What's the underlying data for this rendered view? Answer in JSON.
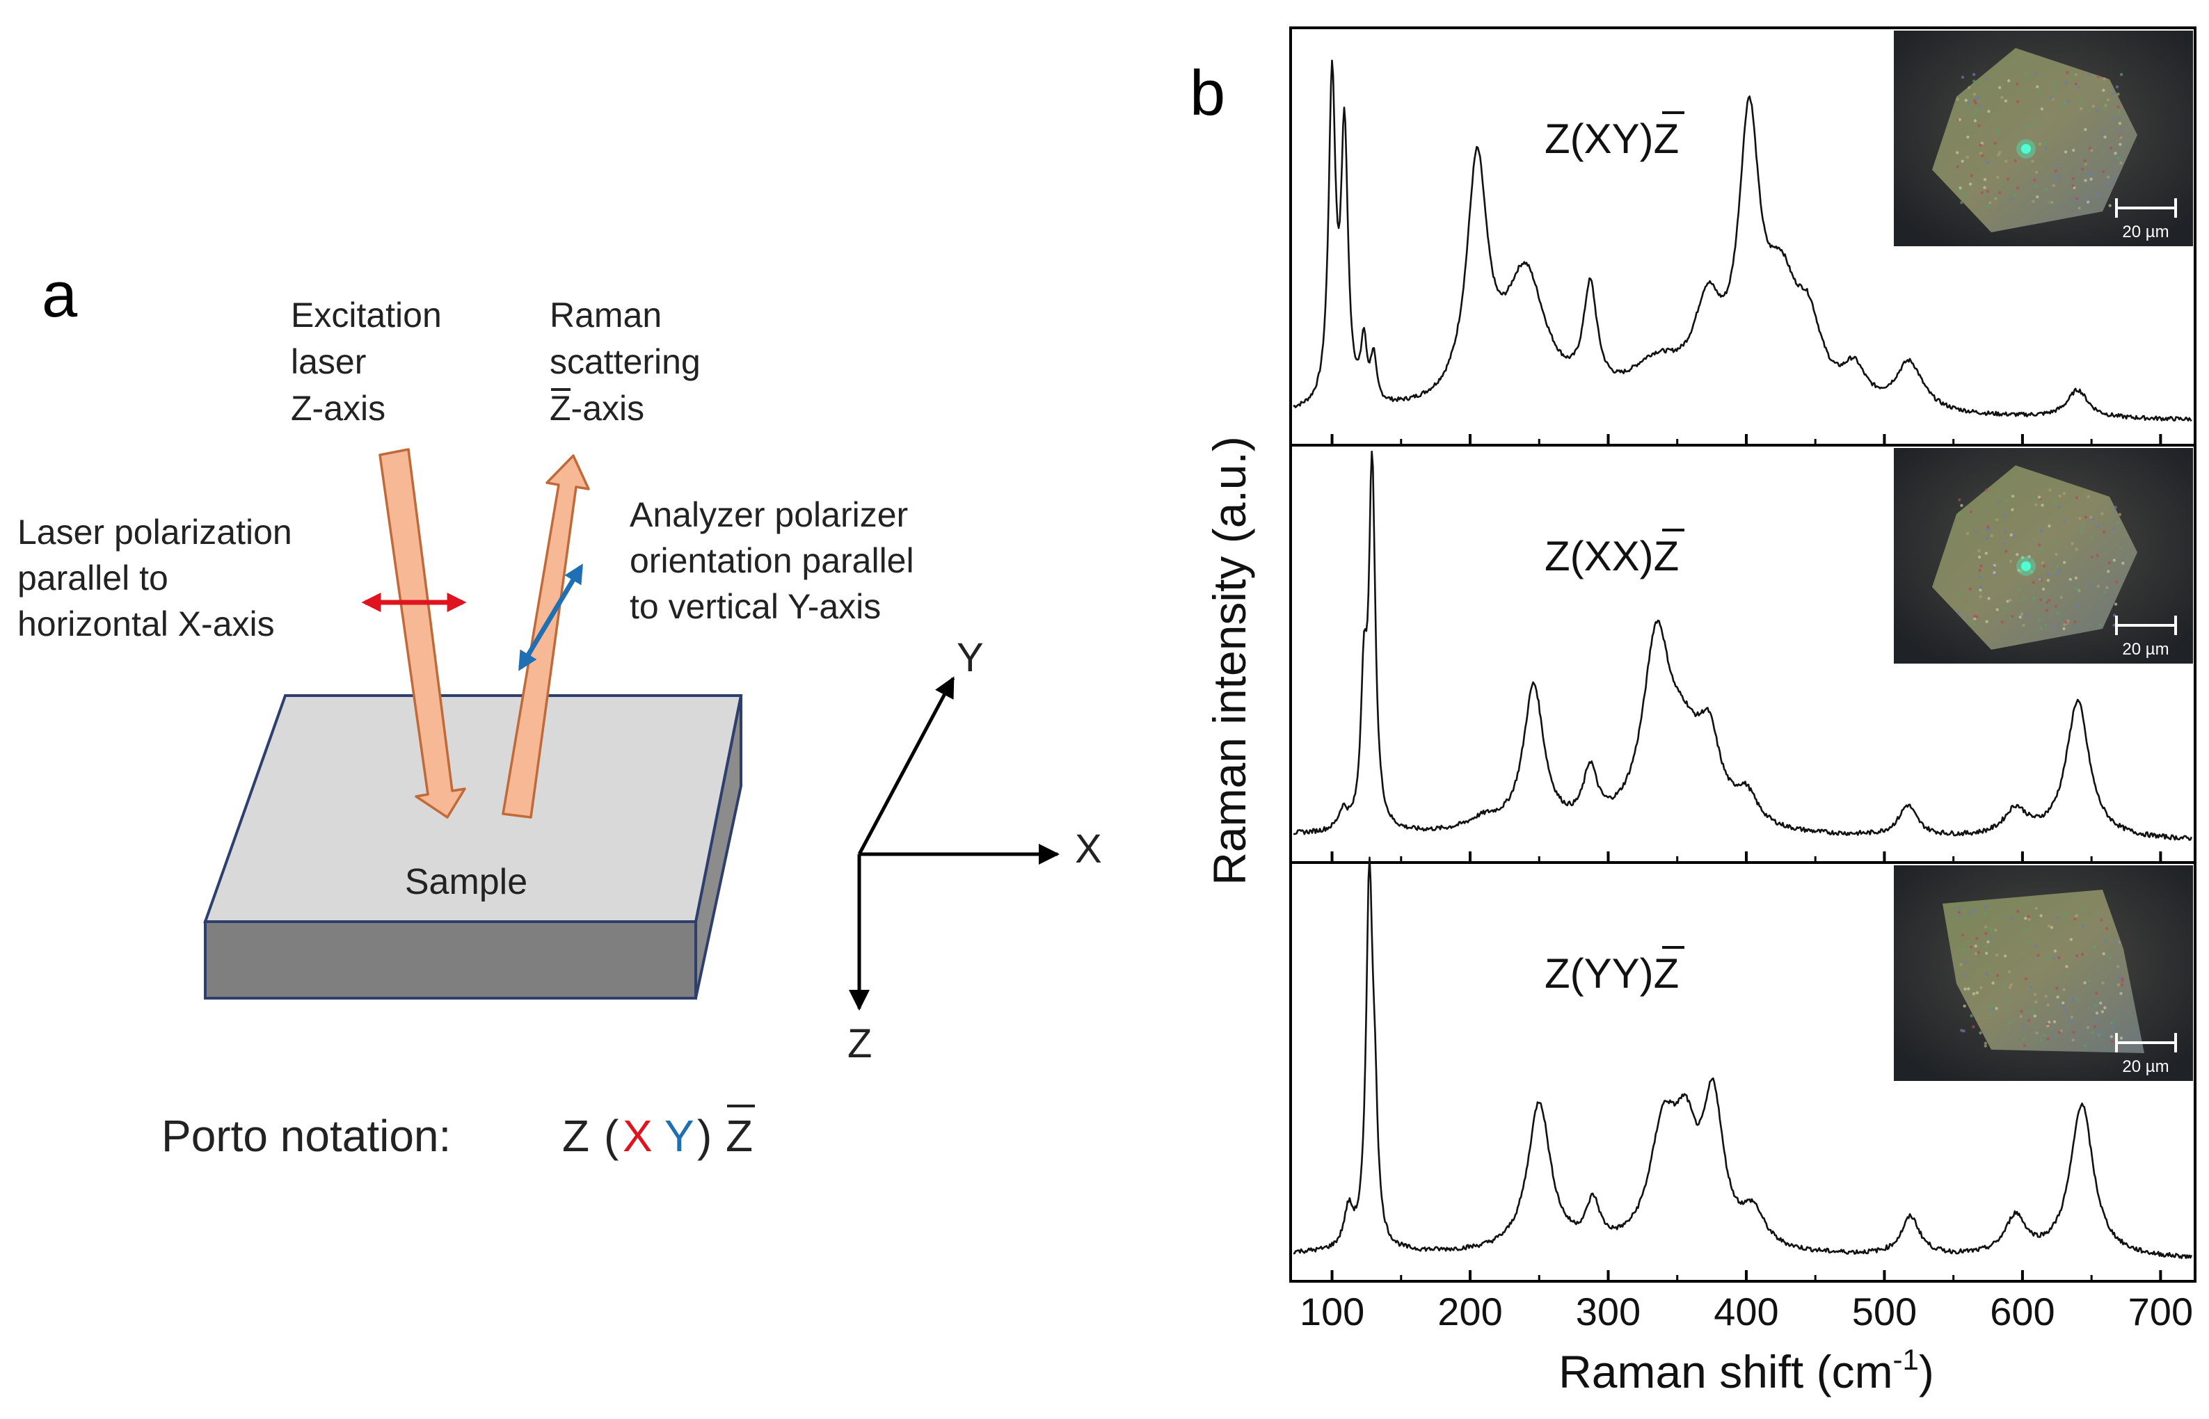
{
  "panel_a": {
    "letter": "a",
    "excitation": [
      "Excitation",
      "laser",
      "Z-axis"
    ],
    "raman": [
      "Raman",
      "scattering",
      "Z-axis"
    ],
    "laser_pol": [
      "Laser polarization",
      "parallel to",
      "horizontal X-axis"
    ],
    "analyzer": [
      "Analyzer polarizer",
      "orientation parallel",
      "to vertical Y-axis"
    ],
    "sample": "Sample",
    "axes": {
      "x": "X",
      "y": "Y",
      "z": "Z"
    },
    "porto": {
      "prefix": "Porto notation:",
      "z1": "Z",
      "open": "(",
      "x": "X",
      "y": "Y",
      "close": ")",
      "z2": "Z"
    },
    "colors": {
      "x": "#e0141e",
      "y": "#1f6fb3",
      "beam": "#f7b896",
      "beam_edge": "#c06a3a",
      "sample_top": "#d9d9d9",
      "sample_side": "#7f7f7f"
    }
  },
  "panel_b": {
    "letter": "b",
    "chart_data": {
      "type": "line",
      "xlabel": "Raman shift (cm",
      "xlabel_sup": "-1",
      "xlabel_close": ")",
      "ylabel": "Raman intensity (a.u.)",
      "xlim": [
        70,
        725
      ],
      "xticks": [
        100,
        200,
        300,
        400,
        500,
        600,
        700
      ],
      "xtick_labels": [
        "100",
        "200",
        "300",
        "400",
        "500",
        "600",
        "700"
      ],
      "series": [
        {
          "name": "Z(XY)Z",
          "label_main": "Z(XY)",
          "label_bar": "Z",
          "inset_scale": "20 µm",
          "inset_spot": true,
          "baseline": 0.03,
          "ymax": 1.12,
          "peaks": [
            {
              "c": 100,
              "a": 0.93,
              "w": 3
            },
            {
              "c": 109,
              "a": 0.77,
              "w": 3
            },
            {
              "c": 123,
              "a": 0.17,
              "w": 2.5
            },
            {
              "c": 130,
              "a": 0.13,
              "w": 2.5
            },
            {
              "c": 205,
              "a": 0.68,
              "w": 9
            },
            {
              "c": 240,
              "a": 0.38,
              "w": 18
            },
            {
              "c": 287,
              "a": 0.3,
              "w": 6
            },
            {
              "c": 335,
              "a": 0.12,
              "w": 25
            },
            {
              "c": 372,
              "a": 0.25,
              "w": 12
            },
            {
              "c": 402,
              "a": 0.77,
              "w": 9
            },
            {
              "c": 425,
              "a": 0.3,
              "w": 14
            },
            {
              "c": 445,
              "a": 0.2,
              "w": 12
            },
            {
              "c": 478,
              "a": 0.1,
              "w": 10
            },
            {
              "c": 518,
              "a": 0.14,
              "w": 12
            },
            {
              "c": 640,
              "a": 0.08,
              "w": 9
            }
          ]
        },
        {
          "name": "Z(XX)Z",
          "label_main": "Z(XX)",
          "label_bar": "Z",
          "inset_scale": "20 µm",
          "inset_spot": true,
          "baseline": 0.02,
          "ymax": 1.02,
          "peaks": [
            {
              "c": 108,
              "a": 0.05,
              "w": 4
            },
            {
              "c": 123,
              "a": 0.35,
              "w": 2.5
            },
            {
              "c": 129,
              "a": 0.95,
              "w": 2.8
            },
            {
              "c": 210,
              "a": 0.03,
              "w": 15
            },
            {
              "c": 246,
              "a": 0.38,
              "w": 9
            },
            {
              "c": 287,
              "a": 0.14,
              "w": 6
            },
            {
              "c": 335,
              "a": 0.48,
              "w": 12
            },
            {
              "c": 355,
              "a": 0.18,
              "w": 15
            },
            {
              "c": 373,
              "a": 0.2,
              "w": 10
            },
            {
              "c": 400,
              "a": 0.08,
              "w": 10
            },
            {
              "c": 517,
              "a": 0.08,
              "w": 8
            },
            {
              "c": 595,
              "a": 0.07,
              "w": 10
            },
            {
              "c": 640,
              "a": 0.36,
              "w": 10
            }
          ]
        },
        {
          "name": "Z(YY)Z",
          "label_main": "Z(YY)",
          "label_bar": "Z",
          "inset_scale": "20 µm",
          "inset_spot": false,
          "baseline": 0.02,
          "ymax": 1.02,
          "peaks": [
            {
              "c": 112,
              "a": 0.1,
              "w": 4
            },
            {
              "c": 127,
              "a": 0.95,
              "w": 2.8
            },
            {
              "c": 131,
              "a": 0.28,
              "w": 2.5
            },
            {
              "c": 250,
              "a": 0.39,
              "w": 10
            },
            {
              "c": 289,
              "a": 0.11,
              "w": 6
            },
            {
              "c": 340,
              "a": 0.3,
              "w": 12
            },
            {
              "c": 356,
              "a": 0.24,
              "w": 10
            },
            {
              "c": 376,
              "a": 0.37,
              "w": 9
            },
            {
              "c": 405,
              "a": 0.09,
              "w": 10
            },
            {
              "c": 519,
              "a": 0.1,
              "w": 8
            },
            {
              "c": 595,
              "a": 0.1,
              "w": 9
            },
            {
              "c": 643,
              "a": 0.4,
              "w": 10
            }
          ]
        }
      ]
    }
  }
}
